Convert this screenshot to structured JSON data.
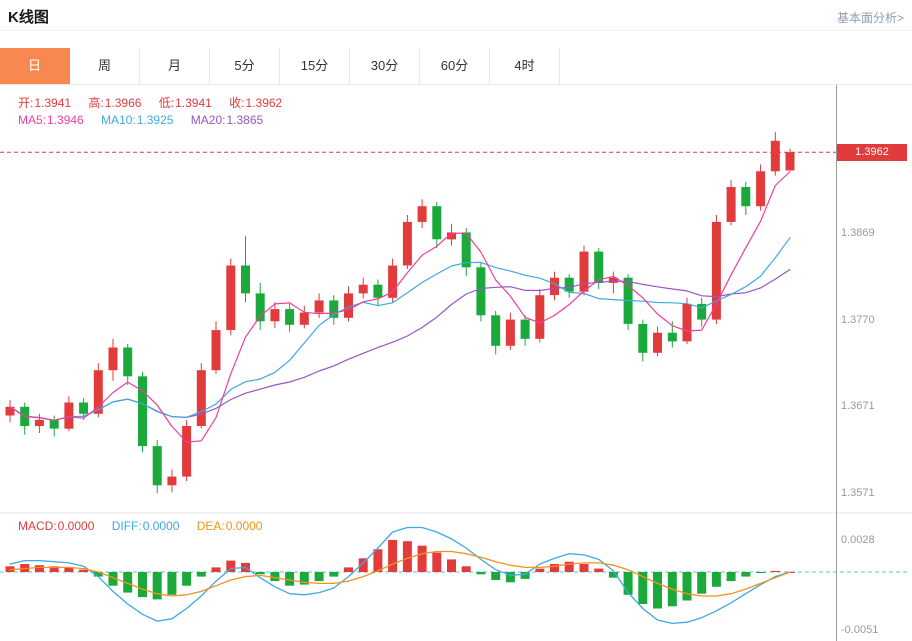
{
  "header": {
    "title": "K线图",
    "link": "基本面分析>"
  },
  "accent_color": "#f78850",
  "tabs": [
    {
      "label": "日",
      "active": true
    },
    {
      "label": "周",
      "active": false
    },
    {
      "label": "月",
      "active": false
    },
    {
      "label": "5分",
      "active": false
    },
    {
      "label": "15分",
      "active": false
    },
    {
      "label": "30分",
      "active": false
    },
    {
      "label": "60分",
      "active": false
    },
    {
      "label": "4时",
      "active": false
    }
  ],
  "ohlc_row": [
    {
      "label": "开:",
      "value": "1.3941"
    },
    {
      "label": "高:",
      "value": "1.3966"
    },
    {
      "label": "低:",
      "value": "1.3941"
    },
    {
      "label": "收:",
      "value": "1.3962"
    }
  ],
  "ma_row": [
    {
      "label": "MA5:",
      "value": "1.3946"
    },
    {
      "label": "MA10:",
      "value": "1.3925"
    },
    {
      "label": "MA20:",
      "value": "1.3865"
    }
  ],
  "macd_row": [
    {
      "label": "MACD:",
      "value": "0.0000"
    },
    {
      "label": "DIFF:",
      "value": "0.0000"
    },
    {
      "label": "DEA:",
      "value": "0.0000"
    }
  ],
  "chart_data": {
    "type": "candlestick",
    "title": "K线图",
    "current_price": 1.3962,
    "price_badge": "1.3962",
    "y_axis_labels": [
      "1.3869",
      "1.3770",
      "1.3671",
      "1.3571"
    ],
    "macd_axis_labels": [
      "0.0028",
      "-0.0051"
    ],
    "main_ylim": [
      1.3554,
      1.4039
    ],
    "macd_ylim": [
      -0.00578,
      0.00473
    ],
    "legend": [
      "MA5",
      "MA10",
      "MA20",
      "MACD",
      "DIFF",
      "DEA"
    ],
    "colors": {
      "up": "#e23b3b",
      "down": "#1ba93c",
      "ma5": "#ef3e9d",
      "ma10": "#3fa9e0",
      "ma20": "#9a55c2",
      "diff": "#3fa9e0",
      "dea": "#f5911e",
      "zero_line": "#56c6d8",
      "price_line": "#e23b3b"
    },
    "candles": [
      [
        1.366,
        1.3678,
        1.3652,
        1.367
      ],
      [
        1.367,
        1.3675,
        1.3638,
        1.3648
      ],
      [
        1.3648,
        1.3662,
        1.364,
        1.3655
      ],
      [
        1.3655,
        1.366,
        1.3636,
        1.3645
      ],
      [
        1.3645,
        1.3682,
        1.3642,
        1.3675
      ],
      [
        1.3675,
        1.368,
        1.3655,
        1.3662
      ],
      [
        1.3662,
        1.372,
        1.3658,
        1.3712
      ],
      [
        1.3712,
        1.3748,
        1.37,
        1.3738
      ],
      [
        1.3738,
        1.3742,
        1.3695,
        1.3705
      ],
      [
        1.3705,
        1.371,
        1.3618,
        1.3625
      ],
      [
        1.3625,
        1.3632,
        1.3571,
        1.358
      ],
      [
        1.358,
        1.3598,
        1.3572,
        1.359
      ],
      [
        1.359,
        1.3655,
        1.3585,
        1.3648
      ],
      [
        1.3648,
        1.372,
        1.3645,
        1.3712
      ],
      [
        1.3712,
        1.3768,
        1.3708,
        1.3758
      ],
      [
        1.3758,
        1.384,
        1.3752,
        1.3832
      ],
      [
        1.3832,
        1.3866,
        1.379,
        1.38
      ],
      [
        1.38,
        1.3812,
        1.3758,
        1.3768
      ],
      [
        1.3768,
        1.379,
        1.376,
        1.3782
      ],
      [
        1.3782,
        1.3788,
        1.3756,
        1.3764
      ],
      [
        1.3764,
        1.3786,
        1.376,
        1.3778
      ],
      [
        1.3778,
        1.38,
        1.3772,
        1.3792
      ],
      [
        1.3792,
        1.3798,
        1.3764,
        1.3772
      ],
      [
        1.3772,
        1.3808,
        1.3768,
        1.38
      ],
      [
        1.38,
        1.3818,
        1.3794,
        1.381
      ],
      [
        1.381,
        1.3816,
        1.3786,
        1.3795
      ],
      [
        1.3795,
        1.384,
        1.379,
        1.3832
      ],
      [
        1.3832,
        1.389,
        1.3828,
        1.3882
      ],
      [
        1.3882,
        1.3908,
        1.3875,
        1.39
      ],
      [
        1.39,
        1.3905,
        1.3852,
        1.3862
      ],
      [
        1.3862,
        1.388,
        1.3855,
        1.387
      ],
      [
        1.387,
        1.3875,
        1.382,
        1.383
      ],
      [
        1.383,
        1.3836,
        1.3768,
        1.3775
      ],
      [
        1.3775,
        1.378,
        1.373,
        1.374
      ],
      [
        1.374,
        1.3778,
        1.3735,
        1.377
      ],
      [
        1.377,
        1.3775,
        1.374,
        1.3748
      ],
      [
        1.3748,
        1.3805,
        1.3744,
        1.3798
      ],
      [
        1.3798,
        1.3825,
        1.3792,
        1.3818
      ],
      [
        1.3818,
        1.3822,
        1.3795,
        1.3802
      ],
      [
        1.3802,
        1.3855,
        1.3798,
        1.3848
      ],
      [
        1.3848,
        1.3852,
        1.3805,
        1.3812
      ],
      [
        1.3812,
        1.3825,
        1.38,
        1.3818
      ],
      [
        1.3818,
        1.3822,
        1.3758,
        1.3765
      ],
      [
        1.3765,
        1.377,
        1.3722,
        1.3732
      ],
      [
        1.3732,
        1.3762,
        1.3728,
        1.3755
      ],
      [
        1.3755,
        1.3768,
        1.3738,
        1.3745
      ],
      [
        1.3745,
        1.3795,
        1.3742,
        1.3788
      ],
      [
        1.3788,
        1.3795,
        1.3762,
        1.377
      ],
      [
        1.377,
        1.389,
        1.3765,
        1.3882
      ],
      [
        1.3882,
        1.393,
        1.3878,
        1.3922
      ],
      [
        1.3922,
        1.3928,
        1.389,
        1.39
      ],
      [
        1.39,
        1.3948,
        1.3895,
        1.394
      ],
      [
        1.394,
        1.3985,
        1.3935,
        1.3975
      ],
      [
        1.3941,
        1.3966,
        1.3941,
        1.3962
      ]
    ],
    "macd": {
      "hist": [
        0.0005,
        0.0007,
        0.0006,
        0.0005,
        0.0004,
        0.0002,
        -0.0004,
        -0.0012,
        -0.0018,
        -0.0022,
        -0.0024,
        -0.002,
        -0.0012,
        -0.0004,
        0.0004,
        0.001,
        0.0008,
        -0.0002,
        -0.0008,
        -0.0012,
        -0.0011,
        -0.0008,
        -0.0004,
        0.0004,
        0.0012,
        0.002,
        0.0028,
        0.0027,
        0.0023,
        0.0017,
        0.0011,
        0.0005,
        -0.0002,
        -0.0007,
        -0.0009,
        -0.0006,
        0.0003,
        0.0007,
        0.0009,
        0.0007,
        0.0003,
        -0.0005,
        -0.002,
        -0.0028,
        -0.0032,
        -0.003,
        -0.0025,
        -0.0019,
        -0.0013,
        -0.0008,
        -0.0004,
        -0.0001,
        0.0001,
        0.0
      ],
      "diff": [
        0.0007,
        0.001,
        0.001,
        0.0009,
        0.0008,
        0.0005,
        -0.0004,
        -0.0017,
        -0.0028,
        -0.0037,
        -0.0043,
        -0.0041,
        -0.0032,
        -0.0021,
        -0.0008,
        0.0003,
        0.0004,
        -0.0005,
        -0.0013,
        -0.0019,
        -0.002,
        -0.0018,
        -0.0014,
        -0.0004,
        0.0008,
        0.0021,
        0.0035,
        0.0039,
        0.0039,
        0.0035,
        0.0029,
        0.0021,
        0.0011,
        0.0002,
        -0.0003,
        -0.0002,
        0.0007,
        0.0012,
        0.0016,
        0.0015,
        0.0011,
        0.0001,
        -0.0018,
        -0.0032,
        -0.0042,
        -0.0045,
        -0.0044,
        -0.004,
        -0.0034,
        -0.0027,
        -0.0019,
        -0.0011,
        -0.0004,
        0.0
      ],
      "dea": [
        0.0002,
        0.0003,
        0.0004,
        0.0004,
        0.0004,
        0.0003,
        0.0,
        -0.0005,
        -0.001,
        -0.0015,
        -0.0019,
        -0.0021,
        -0.002,
        -0.0017,
        -0.0012,
        -0.0007,
        -0.0004,
        -0.0003,
        -0.0005,
        -0.0007,
        -0.0009,
        -0.001,
        -0.001,
        -0.0008,
        -0.0004,
        0.0001,
        0.0007,
        0.0012,
        0.0016,
        0.0018,
        0.0018,
        0.0016,
        0.0013,
        0.0009,
        0.0006,
        0.0004,
        0.0004,
        0.0005,
        0.0007,
        0.0008,
        0.0008,
        0.0006,
        0.0002,
        -0.0004,
        -0.001,
        -0.0015,
        -0.0019,
        -0.0021,
        -0.0021,
        -0.0019,
        -0.0015,
        -0.001,
        -0.0005,
        0.0
      ]
    }
  }
}
